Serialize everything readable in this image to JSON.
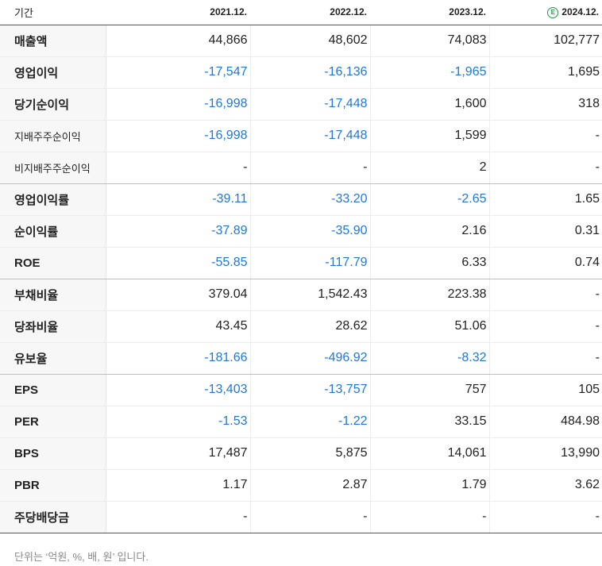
{
  "header": {
    "label": "기간",
    "columns": [
      "2021.12.",
      "2022.12.",
      "2023.12.",
      "2024.12."
    ],
    "estimate_icon_text": "E"
  },
  "rows": [
    {
      "label": "매출액",
      "values": [
        "44,866",
        "48,602",
        "74,083",
        "102,777"
      ]
    },
    {
      "label": "영업이익",
      "values": [
        "-17,547",
        "-16,136",
        "-1,965",
        "1,695"
      ]
    },
    {
      "label": "당기순이익",
      "values": [
        "-16,998",
        "-17,448",
        "1,600",
        "318"
      ]
    },
    {
      "label": "지배주주순이익",
      "values": [
        "-16,998",
        "-17,448",
        "1,599",
        "-"
      ]
    },
    {
      "label": "비지배주주순이익",
      "values": [
        "-",
        "-",
        "2",
        "-"
      ]
    },
    {
      "label": "영업이익률",
      "values": [
        "-39.11",
        "-33.20",
        "-2.65",
        "1.65"
      ]
    },
    {
      "label": "순이익률",
      "values": [
        "-37.89",
        "-35.90",
        "2.16",
        "0.31"
      ]
    },
    {
      "label": "ROE",
      "values": [
        "-55.85",
        "-117.79",
        "6.33",
        "0.74"
      ]
    },
    {
      "label": "부채비율",
      "values": [
        "379.04",
        "1,542.43",
        "223.38",
        "-"
      ]
    },
    {
      "label": "당좌비율",
      "values": [
        "43.45",
        "28.62",
        "51.06",
        "-"
      ]
    },
    {
      "label": "유보율",
      "values": [
        "-181.66",
        "-496.92",
        "-8.32",
        "-"
      ]
    },
    {
      "label": "EPS",
      "values": [
        "-13,403",
        "-13,757",
        "757",
        "105"
      ]
    },
    {
      "label": "PER",
      "values": [
        "-1.53",
        "-1.22",
        "33.15",
        "484.98"
      ]
    },
    {
      "label": "BPS",
      "values": [
        "17,487",
        "5,875",
        "14,061",
        "13,990"
      ]
    },
    {
      "label": "PBR",
      "values": [
        "1.17",
        "2.87",
        "1.79",
        "3.62"
      ]
    },
    {
      "label": "주당배당금",
      "values": [
        "-",
        "-",
        "-",
        "-"
      ]
    }
  ],
  "colors": {
    "negative": "#1f77d9",
    "estimate": "#1d9c4a"
  },
  "footnote": "단위는 ‘억원, %, 배, 원’ 입니다."
}
